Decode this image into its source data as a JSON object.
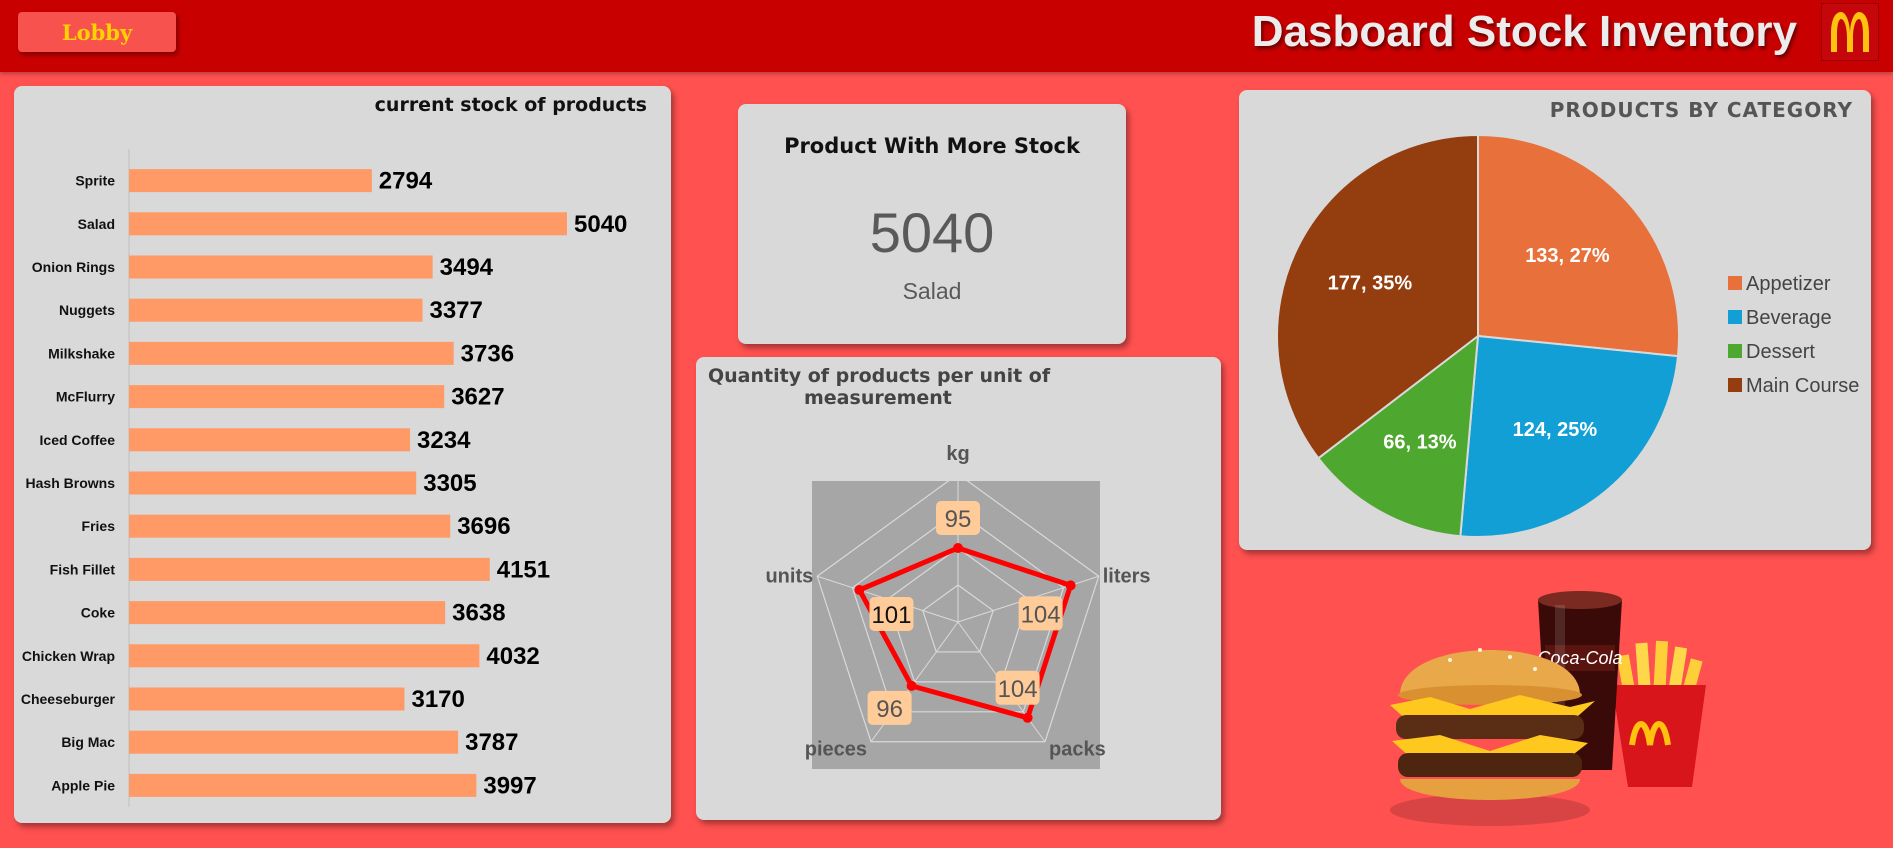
{
  "header": {
    "lobby_label": "Lobby",
    "title": "Dasboard Stock Inventory",
    "logo_icon": "mcdonalds-arches-icon"
  },
  "colors": {
    "background": "#fe5150",
    "header": "#c80000",
    "bar": "#ff9966",
    "logo_yellow": "#ffc20e"
  },
  "stock_panel": {
    "title": "current stock of products"
  },
  "kpi": {
    "title": "Product With More Stock",
    "value": "5040",
    "product": "Salad"
  },
  "radar_panel": {
    "title_line1": "Quantity of products per unit of",
    "title_line2": "measurement"
  },
  "pie_panel": {
    "title": "PRODUCTS BY CATEGORY"
  },
  "food_image": {
    "icon": "burger-fries-cola-illustration"
  },
  "chart_data": [
    {
      "type": "bar",
      "orientation": "horizontal",
      "title": "current stock of products",
      "categories": [
        "Sprite",
        "Salad",
        "Onion Rings",
        "Nuggets",
        "Milkshake",
        "McFlurry",
        "Iced Coffee",
        "Hash Browns",
        "Fries",
        "Fish Fillet",
        "Coke",
        "Chicken Wrap",
        "Cheeseburger",
        "Big Mac",
        "Apple Pie"
      ],
      "values": [
        2794,
        5040,
        3494,
        3377,
        3736,
        3627,
        3234,
        3305,
        3696,
        4151,
        3638,
        4032,
        3170,
        3787,
        3997
      ],
      "xlim": [
        0,
        5800
      ],
      "grid": false
    },
    {
      "type": "radar",
      "title": "Quantity of products per unit of measurement",
      "axes": [
        "kg",
        "liters",
        "packs",
        "pieces",
        "units"
      ],
      "values": [
        95,
        104,
        104,
        96,
        101
      ],
      "rlim": [
        80,
        110
      ]
    },
    {
      "type": "pie",
      "title": "PRODUCTS BY CATEGORY",
      "labels": [
        "Appetizer",
        "Beverage",
        "Dessert",
        "Main Course"
      ],
      "values": [
        133,
        124,
        66,
        177
      ],
      "percent_labels": [
        "133, 27%",
        "124, 25%",
        "66, 13%",
        "177, 35%"
      ],
      "colors": [
        "#e8703a",
        "#119fd6",
        "#4ea72e",
        "#943d0e"
      ],
      "legend": "right"
    }
  ]
}
